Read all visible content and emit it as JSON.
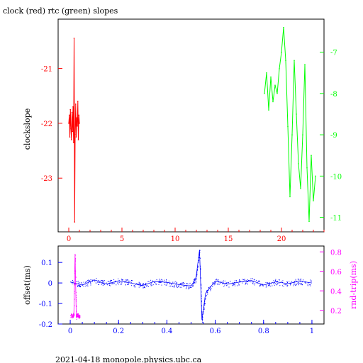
{
  "page": {
    "title": "clock (red) rtc (green) slopes",
    "footer": "2021-04-18  monopole.physics.ubc.ca"
  },
  "colors": {
    "clock": "#ff0000",
    "rtc": "#00ff00",
    "offset": "#0000ff",
    "roundtrip": "#ff00ff",
    "axis": "#000000"
  },
  "chart_data": [
    {
      "type": "line",
      "title": "clock (red) rtc (green) slopes",
      "ylabel": "clockslope",
      "xlim": [
        -1,
        24
      ],
      "ylim": [
        -23.98,
        -20.1
      ],
      "y2lim": [
        -11.35,
        -6.2
      ],
      "xticks": [
        0,
        5,
        10,
        15,
        20
      ],
      "xtick_labels": [
        "0",
        "5",
        "10",
        "15",
        "20"
      ],
      "yticks": [
        -21,
        -22,
        -23
      ],
      "ytick_labels": [
        "-21",
        "-22",
        "-23"
      ],
      "y2ticks": [
        -7,
        -8,
        -9,
        -10,
        -11
      ],
      "y2tick_labels": [
        "-7",
        "-8",
        "-9",
        "-10",
        "-11"
      ],
      "grid": false,
      "series": [
        {
          "name": "clock",
          "axis": "left",
          "x": [
            0.0,
            0.05,
            0.1,
            0.15,
            0.2,
            0.25,
            0.3,
            0.35,
            0.4,
            0.45,
            0.5,
            0.55,
            0.6,
            0.65,
            0.7,
            0.75,
            0.8,
            0.85,
            0.9,
            0.95,
            1.0
          ],
          "values": [
            -22.0,
            -21.85,
            -22.25,
            -21.75,
            -22.1,
            -22.3,
            -21.8,
            -22.15,
            -21.7,
            -22.35,
            -20.45,
            -23.8,
            -22.2,
            -21.65,
            -22.25,
            -21.9,
            -22.05,
            -21.6,
            -22.3,
            -21.85,
            -22.0
          ]
        },
        {
          "name": "rtc",
          "axis": "right",
          "x": [
            18.4,
            18.6,
            18.8,
            19.0,
            19.2,
            19.4,
            19.6,
            19.8,
            20.0,
            20.2,
            20.4,
            20.6,
            20.8,
            21.0,
            21.2,
            21.4,
            21.6,
            21.8,
            22.0,
            22.2,
            22.4,
            22.6,
            22.8,
            23.0,
            23.2
          ],
          "values": [
            -8.0,
            -7.5,
            -8.4,
            -7.6,
            -8.2,
            -7.8,
            -8.0,
            -7.4,
            -7.0,
            -6.4,
            -7.2,
            -8.8,
            -10.5,
            -9.0,
            -7.2,
            -8.5,
            -9.7,
            -10.3,
            -9.0,
            -7.3,
            -9.8,
            -11.1,
            -9.5,
            -10.6,
            -10.0
          ]
        }
      ]
    },
    {
      "type": "scatter",
      "ylabel": "offset(ms)",
      "y2label": "rnd-trip(ms)",
      "xlim": [
        -0.05,
        1.05
      ],
      "ylim": [
        -0.2,
        0.18
      ],
      "y2lim": [
        0.06,
        0.86
      ],
      "xticks": [
        0,
        0.2,
        0.4,
        0.6,
        0.8,
        1
      ],
      "xtick_labels": [
        "0",
        "0.2",
        "0.4",
        "0.6",
        "0.8",
        "1"
      ],
      "yticks": [
        0.1,
        0,
        -0.1,
        -0.2
      ],
      "ytick_labels": [
        "0.1",
        "0",
        "-0.1",
        "-0.2"
      ],
      "y2ticks": [
        0.2,
        0.4,
        0.6,
        0.8
      ],
      "y2tick_labels": [
        "0.2",
        "0.4",
        "0.6",
        "0.8"
      ],
      "grid": false,
      "series": [
        {
          "name": "offset",
          "axis": "left",
          "x": [
            0.0,
            0.05,
            0.1,
            0.15,
            0.2,
            0.25,
            0.3,
            0.35,
            0.4,
            0.45,
            0.5,
            0.52,
            0.535,
            0.545,
            0.56,
            0.6,
            0.65,
            0.7,
            0.75,
            0.8,
            0.85,
            0.9,
            0.95,
            1.0
          ],
          "values": [
            0.005,
            -0.01,
            0.015,
            -0.005,
            0.01,
            0.0,
            -0.012,
            0.008,
            0.003,
            -0.008,
            -0.015,
            0.02,
            0.16,
            -0.18,
            -0.05,
            0.01,
            -0.006,
            0.004,
            0.012,
            -0.01,
            0.006,
            -0.003,
            0.009,
            0.0
          ],
          "spread": 0.03
        },
        {
          "name": "rnd-trip",
          "axis": "right",
          "x": [
            0.0,
            0.01,
            0.015,
            0.02,
            0.025,
            0.03,
            0.035,
            0.04
          ],
          "values": [
            0.15,
            0.14,
            0.17,
            0.78,
            0.13,
            0.16,
            0.14,
            0.15
          ],
          "spread": 0.04
        }
      ]
    }
  ]
}
